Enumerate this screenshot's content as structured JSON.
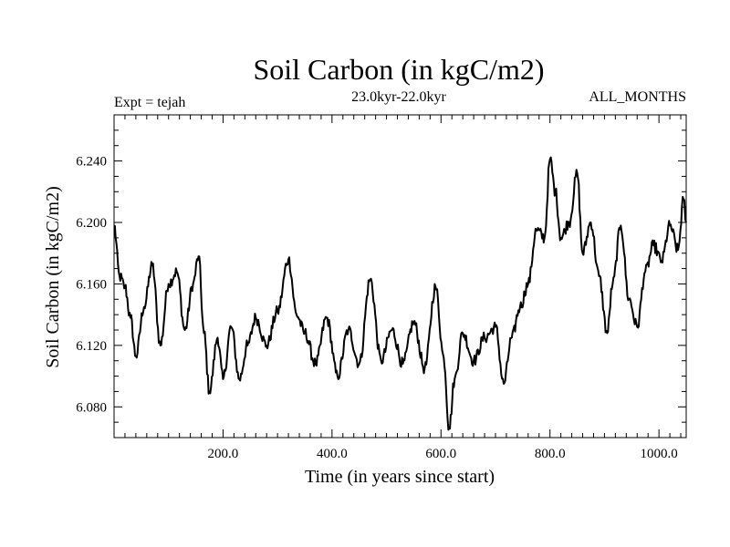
{
  "chart_data": {
    "type": "line",
    "title": "Soil Carbon (in kgC/m2)",
    "subtitle": "23.0kyr-22.0kyr",
    "left_label": "Expt = tejah",
    "right_label": "ALL_MONTHS",
    "xlabel": "Time (in years since start)",
    "ylabel": "Soil Carbon (in kgC/m2)",
    "xlim": [
      0,
      1050
    ],
    "ylim": [
      6.06,
      6.27
    ],
    "x_ticks": [
      200,
      400,
      600,
      800,
      1000
    ],
    "x_tick_labels": [
      "200.0",
      "400.0",
      "600.0",
      "800.0",
      "1000.0"
    ],
    "y_ticks": [
      6.08,
      6.12,
      6.16,
      6.2,
      6.24
    ],
    "y_tick_labels": [
      "6.080",
      "6.120",
      "6.160",
      "6.200",
      "6.240"
    ],
    "grid": false,
    "series": [
      {
        "name": "Soil Carbon",
        "color": "#000000",
        "x": [
          0,
          10,
          20,
          30,
          40,
          55,
          70,
          85,
          100,
          115,
          130,
          145,
          155,
          165,
          175,
          190,
          200,
          215,
          230,
          245,
          260,
          280,
          300,
          320,
          335,
          350,
          370,
          390,
          410,
          430,
          450,
          470,
          490,
          510,
          530,
          550,
          570,
          590,
          605,
          615,
          625,
          640,
          660,
          680,
          700,
          715,
          730,
          745,
          760,
          775,
          790,
          800,
          810,
          820,
          835,
          850,
          860,
          875,
          890,
          905,
          915,
          930,
          945,
          960,
          975,
          990,
          1005,
          1020,
          1035,
          1045,
          1050
        ],
        "values": [
          6.198,
          6.165,
          6.158,
          6.138,
          6.113,
          6.145,
          6.172,
          6.12,
          6.16,
          6.168,
          6.13,
          6.16,
          6.178,
          6.128,
          6.09,
          6.125,
          6.098,
          6.132,
          6.098,
          6.12,
          6.138,
          6.12,
          6.142,
          6.176,
          6.14,
          6.128,
          6.108,
          6.138,
          6.1,
          6.13,
          6.108,
          6.163,
          6.11,
          6.13,
          6.108,
          6.135,
          6.105,
          6.158,
          6.112,
          6.066,
          6.098,
          6.128,
          6.11,
          6.125,
          6.132,
          6.095,
          6.125,
          6.145,
          6.16,
          6.195,
          6.19,
          6.241,
          6.22,
          6.19,
          6.2,
          6.232,
          6.18,
          6.2,
          6.165,
          6.128,
          6.16,
          6.198,
          6.15,
          6.132,
          6.168,
          6.185,
          6.175,
          6.198,
          6.182,
          6.215,
          6.2
        ]
      }
    ]
  }
}
